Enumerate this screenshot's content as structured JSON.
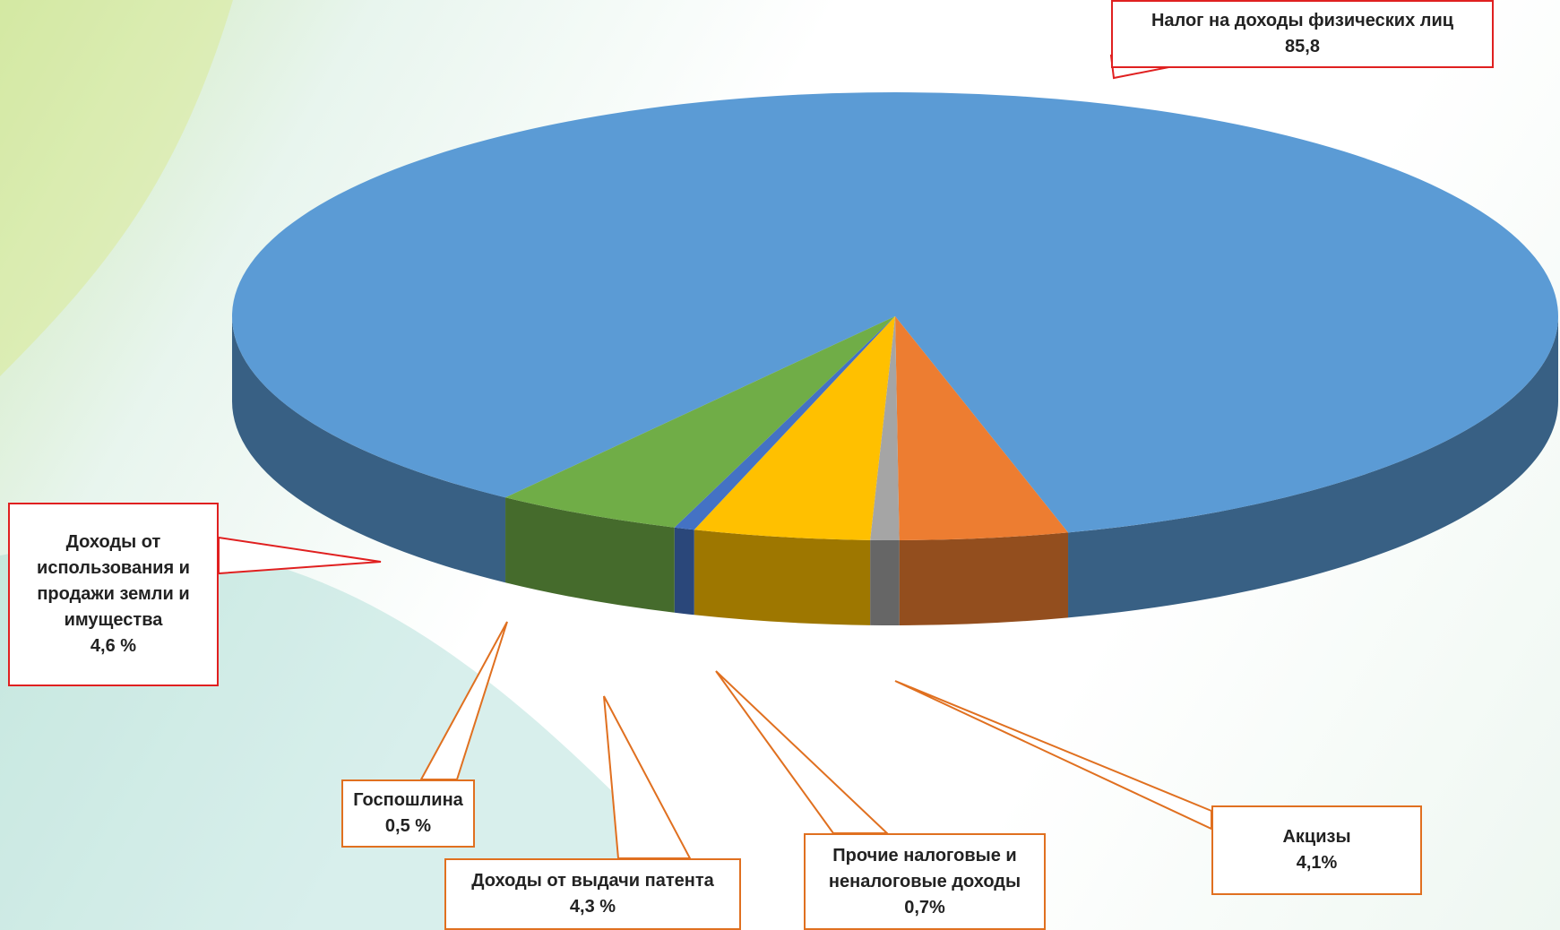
{
  "chart_data": {
    "type": "pie3d",
    "categories": [
      "Налог на доходы физических лиц",
      "Акцизы",
      "Прочие налоговые и неналоговые доходы",
      "Доходы от выдачи патента",
      "Госпошлина",
      "Доходы от использования и продажи земли и имущества"
    ],
    "values": [
      85.8,
      4.1,
      0.7,
      4.3,
      0.5,
      4.6
    ],
    "value_labels": [
      "85,8",
      "4,1%",
      "0,7%",
      "4,3 %",
      "0,5 %",
      "4,6 %"
    ],
    "colors": [
      "#5b9bd5",
      "#ed7d31",
      "#a5a5a5",
      "#ffc000",
      "#4472c4",
      "#70ad47"
    ]
  }
}
